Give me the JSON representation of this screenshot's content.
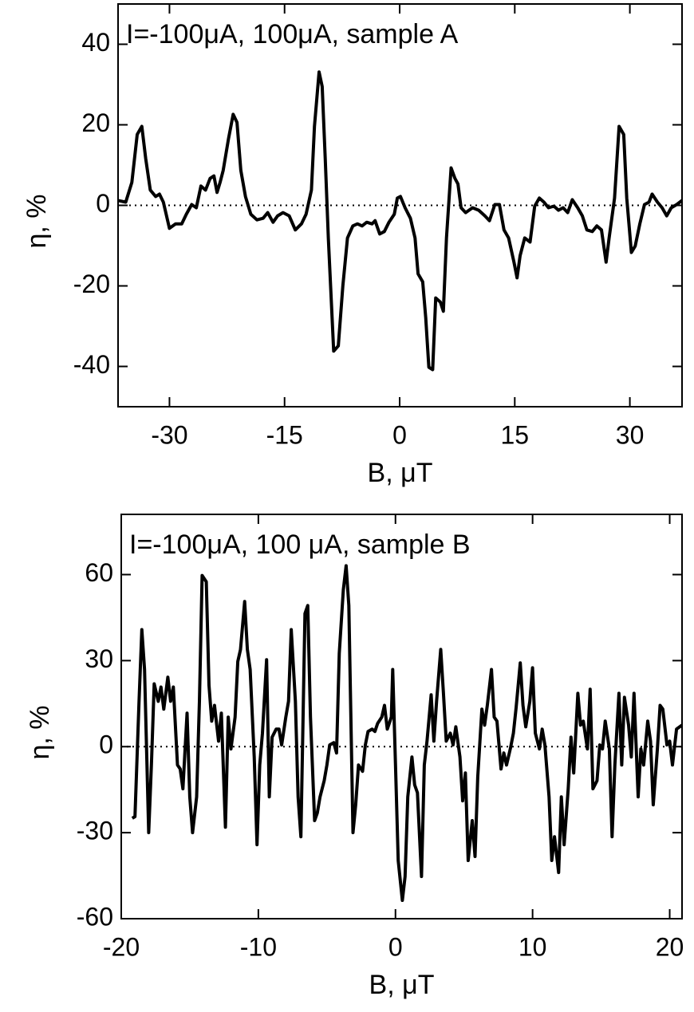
{
  "chart_data": [
    {
      "type": "line",
      "annotation": "I=-100μA, 100μA, sample A",
      "xlabel": "B, μT",
      "ylabel": "η, %",
      "xlim": [
        -36.7,
        36.8
      ],
      "ylim": [
        -50,
        50
      ],
      "xticks": [
        -30,
        -15,
        0,
        15,
        30
      ],
      "yticks": [
        -40,
        -20,
        0,
        20,
        40
      ],
      "hline": 0,
      "x": [
        -36.7,
        -35.7,
        -34.9,
        -34.2,
        -33.6,
        -33.1,
        -32.5,
        -31.8,
        -31.3,
        -30.8,
        -30.0,
        -29.2,
        -28.4,
        -27.8,
        -27.1,
        -26.5,
        -25.9,
        -25.3,
        -24.7,
        -24.2,
        -23.8,
        -23.4,
        -23.0,
        -22.3,
        -21.7,
        -21.2,
        -20.7,
        -20.1,
        -19.4,
        -18.6,
        -17.8,
        -17.2,
        -16.5,
        -15.9,
        -15.2,
        -14.4,
        -13.6,
        -12.8,
        -12.2,
        -11.5,
        -11.1,
        -10.5,
        -10.1,
        -9.7,
        -9.3,
        -8.6,
        -8.0,
        -7.4,
        -6.8,
        -6.1,
        -5.5,
        -4.9,
        -4.3,
        -3.6,
        -3.2,
        -2.6,
        -2.0,
        -1.4,
        -0.7,
        -0.3,
        0.1,
        0.7,
        1.4,
        2.0,
        2.4,
        3.0,
        3.4,
        3.8,
        4.3,
        4.7,
        5.3,
        5.7,
        6.1,
        6.7,
        7.2,
        7.6,
        8.0,
        8.6,
        9.5,
        10.3,
        11.1,
        11.7,
        12.4,
        13.0,
        13.6,
        14.2,
        14.9,
        15.3,
        15.7,
        16.3,
        17.0,
        17.6,
        18.2,
        18.8,
        19.4,
        20.1,
        20.7,
        21.3,
        21.9,
        22.5,
        23.2,
        23.8,
        24.4,
        25.1,
        25.7,
        26.3,
        26.9,
        27.3,
        28.0,
        28.6,
        29.2,
        29.6,
        30.2,
        30.7,
        31.3,
        31.9,
        32.5,
        32.9,
        33.6,
        34.2,
        34.8,
        35.4,
        36.1,
        36.8
      ],
      "series": [
        {
          "color": "#000000",
          "values": [
            1.2,
            0.8,
            5.7,
            17.6,
            19.6,
            11.7,
            3.8,
            2.2,
            2.8,
            0.8,
            -5.7,
            -4.6,
            -4.6,
            -2.2,
            0.2,
            -0.6,
            4.8,
            3.8,
            6.7,
            7.3,
            3.2,
            5.7,
            8.7,
            16.6,
            22.6,
            20.6,
            8.7,
            2.2,
            -2.2,
            -3.6,
            -3.2,
            -1.8,
            -4.2,
            -2.6,
            -1.8,
            -2.6,
            -6.1,
            -4.6,
            -2.2,
            3.8,
            19.6,
            33.1,
            29.5,
            11.7,
            -8.1,
            -36.2,
            -34.9,
            -20.0,
            -8.1,
            -5.1,
            -4.6,
            -5.1,
            -4.2,
            -4.6,
            -3.8,
            -7.1,
            -6.5,
            -4.2,
            -2.2,
            1.8,
            2.2,
            -0.6,
            -3.2,
            -8.1,
            -17.0,
            -19.0,
            -27.9,
            -40.2,
            -40.8,
            -23.0,
            -24.0,
            -26.3,
            -8.1,
            9.3,
            6.7,
            5.3,
            -0.6,
            -1.8,
            -0.6,
            -1.2,
            -2.6,
            -3.8,
            0.2,
            0.2,
            -6.1,
            -8.1,
            -14.1,
            -18.0,
            -12.5,
            -8.1,
            -9.1,
            -0.2,
            1.8,
            0.8,
            -0.6,
            -0.2,
            -1.2,
            -0.6,
            -1.8,
            1.4,
            -0.6,
            -2.6,
            -6.1,
            -6.5,
            -5.1,
            -6.1,
            -14.1,
            -8.1,
            1.8,
            19.6,
            17.6,
            1.8,
            -11.7,
            -10.1,
            -4.6,
            0.2,
            0.8,
            2.8,
            0.8,
            -0.6,
            -2.6,
            -0.6,
            0.2,
            1.2
          ]
        }
      ]
    },
    {
      "type": "line",
      "annotation": "I=-100μA, 100 μA, sample B",
      "xlabel": "B, μT",
      "ylabel": "η, %",
      "xlim": [
        -20,
        20.9
      ],
      "ylim": [
        -60,
        81
      ],
      "xticks": [
        -20,
        -10,
        0,
        10,
        20
      ],
      "yticks": [
        -60,
        -30,
        0,
        30,
        60
      ],
      "hline": 0,
      "x": [
        -19.2,
        -19.0,
        -18.7,
        -18.5,
        -18.3,
        -18.0,
        -17.8,
        -17.6,
        -17.3,
        -17.1,
        -16.9,
        -16.6,
        -16.4,
        -16.2,
        -15.9,
        -15.7,
        -15.5,
        -15.2,
        -15.0,
        -14.8,
        -14.5,
        -14.3,
        -14.1,
        -13.8,
        -13.6,
        -13.4,
        -13.2,
        -12.9,
        -12.7,
        -12.4,
        -12.2,
        -12.0,
        -11.7,
        -11.5,
        -11.3,
        -11.0,
        -10.8,
        -10.6,
        -10.3,
        -10.1,
        -9.9,
        -9.7,
        -9.4,
        -9.2,
        -9.0,
        -8.7,
        -8.5,
        -8.3,
        -8.0,
        -7.8,
        -7.6,
        -7.3,
        -7.1,
        -6.9,
        -6.6,
        -6.4,
        -6.2,
        -5.9,
        -5.7,
        -5.5,
        -5.2,
        -5.0,
        -4.8,
        -4.5,
        -4.3,
        -4.1,
        -3.8,
        -3.6,
        -3.4,
        -3.1,
        -2.9,
        -2.7,
        -2.4,
        -2.2,
        -2.0,
        -1.7,
        -1.5,
        -1.3,
        -1.0,
        -0.8,
        -0.6,
        -0.3,
        -0.2,
        0.0,
        0.2,
        0.5,
        0.7,
        0.9,
        1.2,
        1.4,
        1.6,
        1.9,
        2.1,
        2.3,
        2.6,
        2.8,
        3.0,
        3.3,
        3.5,
        3.7,
        4.0,
        4.2,
        4.4,
        4.7,
        4.9,
        5.1,
        5.3,
        5.6,
        5.8,
        6.0,
        6.3,
        6.5,
        6.7,
        7.0,
        7.2,
        7.4,
        7.7,
        7.9,
        8.1,
        8.4,
        8.6,
        8.8,
        9.1,
        9.3,
        9.5,
        9.8,
        10.0,
        10.2,
        10.5,
        10.7,
        10.9,
        11.2,
        11.4,
        11.6,
        11.9,
        12.1,
        12.3,
        12.6,
        12.8,
        13.0,
        13.3,
        13.5,
        13.7,
        14.0,
        14.2,
        14.4,
        14.7,
        14.9,
        15.1,
        15.3,
        15.6,
        15.8,
        16.0,
        16.3,
        16.5,
        16.7,
        17.0,
        17.2,
        17.4,
        17.7,
        17.9,
        18.1,
        18.4,
        18.6,
        18.8,
        19.1,
        19.3,
        19.5,
        19.8,
        20.0,
        20.2,
        20.5,
        20.9
      ],
      "series": [
        {
          "color": "#000000",
          "values": [
            -25,
            -24.4,
            15.8,
            40.8,
            26.9,
            -30,
            -6.4,
            21.9,
            15.8,
            20.8,
            13.1,
            24.2,
            15.8,
            20.8,
            -6.4,
            -7.8,
            -14.7,
            11.7,
            -17.5,
            -30,
            -17.5,
            15.8,
            59.7,
            57.5,
            21.4,
            8.9,
            14.4,
            1.9,
            11.7,
            -28.1,
            10.3,
            -0.8,
            10.3,
            29.7,
            33.9,
            50.6,
            33.9,
            26.9,
            -3.6,
            -34.2,
            -6.4,
            4.7,
            30.3,
            -17.5,
            3.3,
            6.1,
            6.1,
            0.6,
            10.3,
            15.8,
            40.8,
            15.8,
            -17.5,
            -31.4,
            46.4,
            49.2,
            10.3,
            -25.8,
            -23.1,
            -17.5,
            -11.9,
            -6.4,
            0.6,
            1.4,
            -2.2,
            32.5,
            54.7,
            63.1,
            49.2,
            -30,
            -20.3,
            -6.4,
            -8.6,
            0.6,
            5.3,
            6.1,
            5.3,
            8.1,
            10.3,
            14.4,
            6.1,
            10.3,
            26.9,
            -6.4,
            -39.7,
            -53.6,
            -45.3,
            -17.5,
            -3.6,
            -13.3,
            -16.1,
            -45.3,
            -6.4,
            1.9,
            18.1,
            1.9,
            15.8,
            33.9,
            18.6,
            1.9,
            4.7,
            0.6,
            6.9,
            -3.6,
            -18.9,
            -9.2,
            -39.7,
            -25.8,
            -38.3,
            -10.6,
            13.1,
            7.5,
            14.4,
            26.9,
            10.3,
            8.9,
            -7.8,
            -2.2,
            -6.4,
            -0.3,
            4.7,
            13.6,
            29.2,
            14.4,
            6.9,
            15.8,
            27.5,
            4.7,
            -0.8,
            6.1,
            0.6,
            -17.5,
            -39.7,
            -31.4,
            -43.9,
            -17.5,
            -34.2,
            -14.7,
            3.3,
            -9.2,
            18.6,
            7.5,
            8.9,
            -0.8,
            20.0,
            -14.7,
            -11.9,
            0.6,
            -0.8,
            8.9,
            -0.8,
            -31.4,
            -6.4,
            18.6,
            -6.4,
            17.2,
            7.5,
            -3.6,
            18.6,
            -17.5,
            -0.8,
            -6.4,
            8.9,
            1.9,
            -20.3,
            -0.8,
            14.4,
            13.1,
            0.6,
            1.9,
            -6.4,
            6.1,
            7.5
          ]
        }
      ]
    }
  ]
}
